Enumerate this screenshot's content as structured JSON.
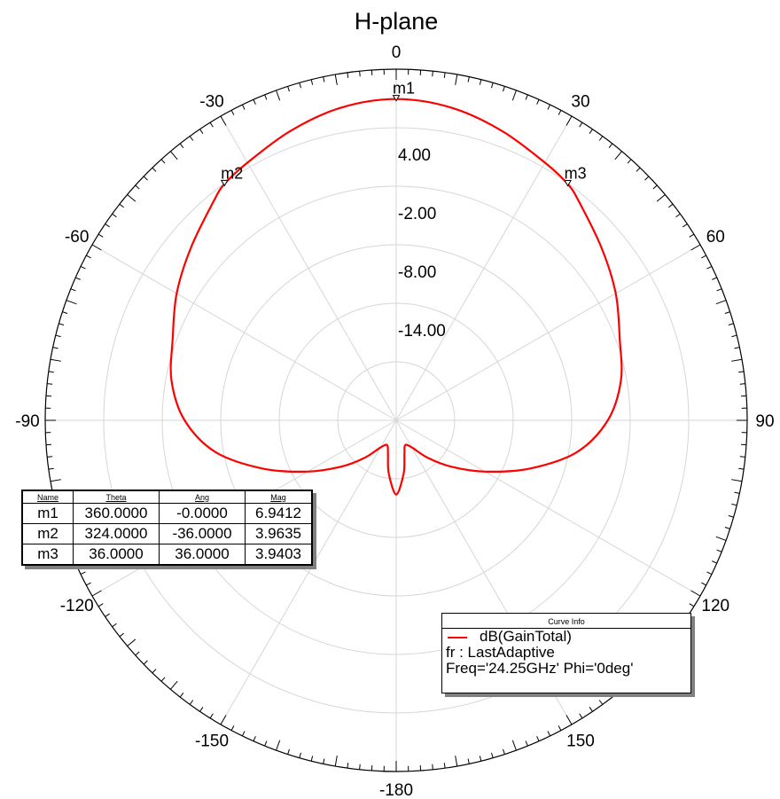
{
  "chart_data": {
    "type": "polar",
    "title": "H-plane",
    "angle_labels": [
      "0",
      "30",
      "60",
      "90",
      "120",
      "150",
      "-180",
      "-150",
      "-120",
      "-90",
      "-60",
      "-30"
    ],
    "angle_values": [
      0,
      30,
      60,
      90,
      120,
      150,
      180,
      210,
      240,
      270,
      300,
      330
    ],
    "radial_ticks": [
      "4.00",
      "-2.00",
      "-8.00",
      "-14.00"
    ],
    "radial_tick_values": [
      4,
      -2,
      -8,
      -14
    ],
    "radial_range": [
      -26,
      10
    ],
    "grid": true,
    "angular_spoke_step_deg": 30,
    "series": [
      {
        "name": "dB(GainTotal)",
        "color": "#ff0000",
        "theta_deg": [
          0,
          10,
          20,
          30,
          36,
          40,
          50,
          60,
          70,
          80,
          90,
          100,
          110,
          120,
          130,
          140,
          150,
          160,
          166,
          172,
          180,
          188,
          194,
          200,
          210,
          220,
          230,
          240,
          250,
          260,
          270,
          280,
          290,
          300,
          310,
          320,
          324,
          330,
          340,
          350,
          360
        ],
        "gain_db": [
          6.94,
          6.55,
          5.6,
          4.5,
          3.94,
          3.2,
          1.5,
          0.0,
          -1.6,
          -2.6,
          -4.3,
          -7.2,
          -11.5,
          -15.5,
          -18.6,
          -21.0,
          -22.8,
          -23.3,
          -22.5,
          -20.5,
          -18.4,
          -20.5,
          -22.5,
          -23.3,
          -22.8,
          -21.0,
          -18.6,
          -15.5,
          -11.5,
          -7.2,
          -4.3,
          -2.6,
          -1.6,
          0.0,
          1.5,
          3.2,
          3.96,
          4.5,
          5.6,
          6.55,
          6.94
        ]
      }
    ],
    "markers": [
      {
        "name": "m1",
        "theta": "360.0000",
        "ang": "-0.0000",
        "mag": "6.9412",
        "theta_deg": 360,
        "mag_db": 6.9412
      },
      {
        "name": "m2",
        "theta": "324.0000",
        "ang": "-36.0000",
        "mag": "3.9635",
        "theta_deg": 324,
        "mag_db": 3.9635
      },
      {
        "name": "m3",
        "theta": "36.0000",
        "ang": "36.0000",
        "mag": "3.9403",
        "theta_deg": 36,
        "mag_db": 3.9403
      }
    ]
  },
  "marker_table": {
    "headers": [
      "Name",
      "Theta",
      "Ang",
      "Mag"
    ]
  },
  "curve_info": {
    "title": "Curve Info",
    "series_label": "dB(GainTotal)",
    "line2": "fr : LastAdaptive",
    "line3": "Freq='24.25GHz' Phi='0deg'",
    "color": "#ff0000"
  }
}
